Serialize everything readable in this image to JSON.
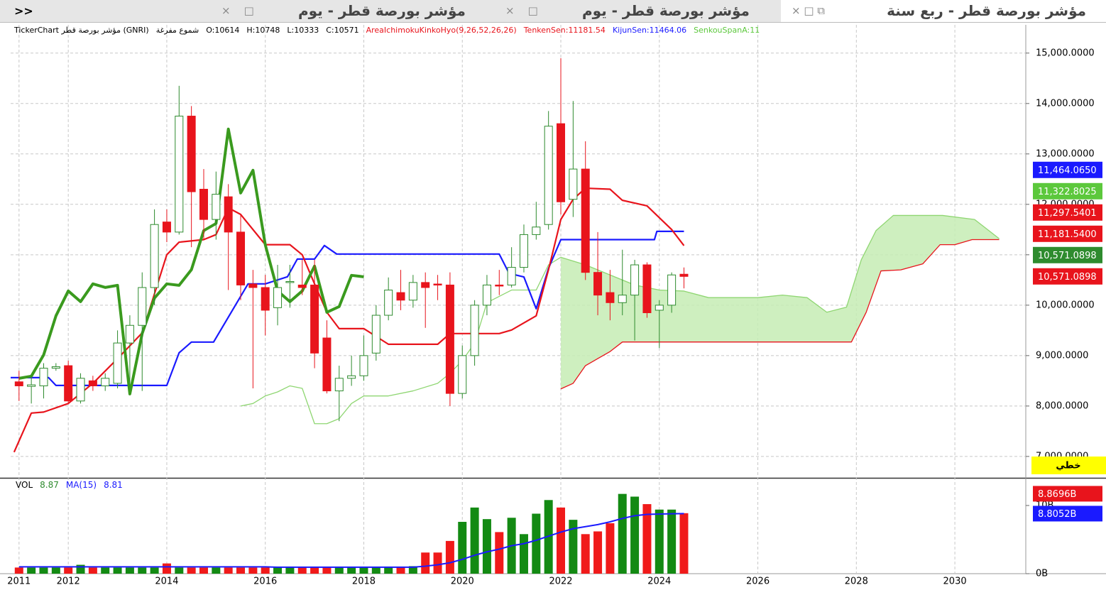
{
  "tabs": [
    "مؤشر بورصة قطر - ربع سنة",
    "مؤشر بورصة قطر - يوم",
    "مؤشر بورصة قطر - يوم"
  ],
  "collapse": "<<",
  "chart_data": [
    {
      "type": "candlestick",
      "legend": [
        {
          "text": "TickerChart مؤشر بورصة قطر (GNRI)",
          "color": "#000"
        },
        {
          "text": "شموع مفرغة",
          "color": "#000"
        },
        {
          "text": "O:10614",
          "color": "#000"
        },
        {
          "text": "H:10748",
          "color": "#000"
        },
        {
          "text": "L:10333",
          "color": "#000"
        },
        {
          "text": "C:10571",
          "color": "#000"
        },
        {
          "text": "AreaIchimokuKinkoHyo(9,26,52,26,26)",
          "color": "#e8141c"
        },
        {
          "text": "TenkenSen:11181.54",
          "color": "#e8141c"
        },
        {
          "text": "KijunSen:11464.06",
          "color": "#1a1aff"
        },
        {
          "text": "SenkouSpanA:11",
          "color": "#5cc83c"
        }
      ],
      "scale_button": "خطي",
      "xlim": [
        2010.83,
        2031.44
      ],
      "xticks": [
        2011,
        2012,
        2014,
        2016,
        2018,
        2020,
        2022,
        2024,
        2026,
        2028,
        2030
      ],
      "ylim": [
        6590,
        15560
      ],
      "yticks": [
        {
          "value": 7000,
          "label": "7,000.0000"
        },
        {
          "value": 8000,
          "label": "8,000.0000"
        },
        {
          "value": 9000,
          "label": "9,000.0000"
        },
        {
          "value": 10000,
          "label": "10,000.0000"
        },
        {
          "value": 11000,
          "label": "11,000.0000"
        },
        {
          "value": 12000,
          "label": "12,000.0000"
        },
        {
          "value": 13000,
          "label": "13,000.0000"
        },
        {
          "value": 14000,
          "label": "14,000.0000"
        },
        {
          "value": 15000,
          "label": "15,000.0000"
        }
      ],
      "grid": true,
      "up_color": "#2e8b2e",
      "down_color": "#e8141c",
      "cloud_color": "#c6ecb4",
      "x": [
        2011,
        2011.25,
        2011.5,
        2011.75,
        2012,
        2012.25,
        2012.5,
        2012.75,
        2013,
        2013.25,
        2013.5,
        2013.75,
        2014,
        2014.25,
        2014.5,
        2014.75,
        2015,
        2015.25,
        2015.5,
        2015.75,
        2016,
        2016.25,
        2016.5,
        2016.75,
        2017,
        2017.25,
        2017.5,
        2017.75,
        2018,
        2018.25,
        2018.5,
        2018.75,
        2019,
        2019.25,
        2019.5,
        2019.75,
        2020,
        2020.25,
        2020.5,
        2020.75,
        2021,
        2021.25,
        2021.5,
        2021.75,
        2022,
        2022.25,
        2022.5,
        2022.75,
        2023,
        2023.25,
        2023.5,
        2023.75,
        2024,
        2024.25,
        2024.5
      ],
      "open": [
        8480,
        8390,
        8400,
        8750,
        8800,
        8100,
        8500,
        8400,
        8450,
        9250,
        9600,
        10350,
        11650,
        11450,
        13750,
        12300,
        11700,
        12150,
        11450,
        10420,
        10350,
        9950,
        10450,
        10400,
        10400,
        9350,
        8300,
        8550,
        8600,
        9050,
        9800,
        10250,
        10100,
        10450,
        10420,
        10400,
        8250,
        9000,
        10000,
        10400,
        10400,
        10750,
        11400,
        11600,
        13600,
        12100,
        12700,
        10650,
        10250,
        10050,
        10200,
        10800,
        9900,
        10000,
        10614
      ],
      "high": [
        8700,
        8600,
        8850,
        8850,
        8900,
        8650,
        8600,
        8650,
        9500,
        9800,
        10650,
        11900,
        11900,
        14350,
        13950,
        12700,
        12650,
        12400,
        11800,
        10700,
        10600,
        10800,
        10800,
        10900,
        10900,
        9700,
        8800,
        9000,
        9400,
        10000,
        10550,
        10700,
        10600,
        10650,
        10600,
        10650,
        9200,
        10100,
        10600,
        10700,
        11150,
        11600,
        12050,
        13850,
        14900,
        14050,
        13250,
        11450,
        10700,
        11100,
        10900,
        10850,
        10100,
        10650,
        10748
      ],
      "low": [
        8100,
        8050,
        8150,
        8700,
        8050,
        8050,
        8300,
        8300,
        8350,
        8400,
        8300,
        10000,
        11250,
        11400,
        11150,
        11300,
        11300,
        10300,
        10100,
        8350,
        9400,
        9600,
        9950,
        10200,
        8750,
        8250,
        7700,
        8400,
        8500,
        8900,
        9700,
        9900,
        9950,
        9550,
        10100,
        8000,
        8150,
        8800,
        9800,
        10200,
        10350,
        10650,
        11300,
        11500,
        11800,
        11750,
        10500,
        9800,
        9700,
        9800,
        9300,
        9750,
        9150,
        9850,
        10333
      ],
      "close": [
        8400,
        8420,
        8750,
        8780,
        8100,
        8550,
        8400,
        8550,
        9250,
        9600,
        10350,
        11600,
        11450,
        13750,
        12250,
        11700,
        12200,
        11450,
        10400,
        10350,
        9900,
        10350,
        10470,
        10350,
        9050,
        8300,
        8550,
        8600,
        9000,
        9800,
        10300,
        10100,
        10450,
        10350,
        10400,
        8250,
        9000,
        10000,
        10400,
        10380,
        10750,
        11400,
        11550,
        13550,
        12050,
        12700,
        10650,
        10200,
        10050,
        10200,
        10800,
        9850,
        10000,
        10600,
        10571
      ],
      "lines": [
        {
          "color": "#8fd672",
          "width": 1.3,
          "x": [
            2015.5,
            2015.75,
            2016,
            2016.25,
            2016.5,
            2016.75,
            2017,
            2017.25,
            2017.5,
            2017.75,
            2018,
            2018.5,
            2019,
            2019.5,
            2019.75,
            2020,
            2020.25,
            2020.5,
            2021,
            2021.5,
            2021.75,
            2022,
            2022.5,
            2023,
            2023.5,
            2024,
            2024.5,
            2025,
            2026,
            2026.5,
            2027,
            2027.4,
            2027.8,
            2028.1,
            2028.4,
            2028.75,
            2029.75,
            2030.4,
            2030.9
          ],
          "values": [
            8000,
            8050,
            8200,
            8280,
            8400,
            8350,
            7650,
            7650,
            7750,
            8050,
            8200,
            8200,
            8300,
            8450,
            8650,
            8900,
            9250,
            10050,
            10300,
            10300,
            10800,
            10950,
            10800,
            10600,
            10400,
            10300,
            10280,
            10150,
            10150,
            10200,
            10150,
            9860,
            9960,
            10900,
            11480,
            11780,
            11780,
            11700,
            11320
          ]
        },
        {
          "color": "#e8141c",
          "width": 1.3,
          "x": [
            2022,
            2022.25,
            2022.5,
            2022.75,
            2023,
            2023.25,
            2027.9,
            2028.2,
            2028.5,
            2028.9,
            2029.35,
            2029.7,
            2030,
            2030.35,
            2030.9
          ],
          "values": [
            8340,
            8450,
            8800,
            8940,
            9080,
            9270,
            9270,
            9860,
            10680,
            10700,
            10820,
            11200,
            11200,
            11300,
            11300
          ]
        },
        {
          "color": "#1a1aff",
          "width": 2.2,
          "x": [
            2010.83,
            2011.6,
            2011.75,
            2014,
            2014.25,
            2014.5,
            2014.95,
            2015.65,
            2016,
            2016.45,
            2016.65,
            2017,
            2017.2,
            2017.45,
            2020.75,
            2020.95,
            2021.25,
            2021.5,
            2021.75,
            2022,
            2023.9,
            2023.95,
            2024.5
          ],
          "values": [
            8563,
            8563,
            8408,
            8408,
            9056,
            9268,
            9268,
            10423,
            10423,
            10563,
            10915,
            10915,
            11183,
            11014,
            11014,
            10630,
            10560,
            9930,
            10730,
            11300,
            11300,
            11464.06,
            11464.06
          ]
        },
        {
          "color": "#e8141c",
          "width": 2.2,
          "x": [
            2010.9,
            2011.25,
            2011.5,
            2012,
            2012.5,
            2013,
            2013.5,
            2014,
            2014.25,
            2014.75,
            2015,
            2015.25,
            2015.5,
            2016,
            2016.5,
            2016.75,
            2017,
            2017.25,
            2017.5,
            2018,
            2018.5,
            2019.5,
            2019.75,
            2020.75,
            2021,
            2021.5,
            2021.75,
            2022,
            2022.25,
            2022.5,
            2023,
            2023.25,
            2023.75,
            2024.25,
            2024.5
          ],
          "values": [
            7085,
            7860,
            7880,
            8050,
            8450,
            8940,
            9450,
            11000,
            11250,
            11300,
            11400,
            11930,
            11800,
            11200,
            11200,
            11000,
            10423,
            9859,
            9535,
            9535,
            9225,
            9225,
            9437,
            9437,
            9507,
            9789,
            10704,
            11700,
            12100,
            12320,
            12300,
            12080,
            11970,
            11500,
            11181.54
          ]
        },
        {
          "color": "#3a9a1e",
          "width": 4,
          "x": [
            2011,
            2011.25,
            2011.5,
            2011.75,
            2012,
            2012.25,
            2012.5,
            2012.75,
            2013,
            2013.25,
            2013.5,
            2013.75,
            2014,
            2014.25,
            2014.5,
            2014.75,
            2015,
            2015.25,
            2015.5,
            2015.75,
            2016,
            2016.25,
            2016.5,
            2016.75,
            2017,
            2017.25,
            2017.5,
            2017.75,
            2018
          ],
          "values": [
            8549,
            8592,
            9014,
            9789,
            10282,
            10070,
            10423,
            10352,
            10394,
            8239,
            9437,
            10141,
            10423,
            10394,
            10704,
            11479,
            11620,
            13493,
            12225,
            12676,
            11197,
            10282,
            10070,
            10282,
            10775,
            9859,
            9972,
            10592,
            10563
          ]
        }
      ],
      "last_labels": [
        {
          "value": 11464.065,
          "label": "11,464.0650",
          "color": "#1a1aff"
        },
        {
          "value": 11322.8025,
          "label": "11,322.8025",
          "color": "#5cc83c"
        },
        {
          "value": 11297.5401,
          "label": "11,297.5401",
          "color": "#e8141c"
        },
        {
          "value": 11181.54,
          "label": "11,181.5400",
          "color": "#e8141c"
        },
        {
          "value": 10571.0898,
          "label": "10,571.0898",
          "color": "#2e8b2e"
        },
        {
          "value": 10571.0898,
          "label": "10,571.0898",
          "color": "#e8141c"
        }
      ]
    },
    {
      "type": "bar",
      "legend": [
        {
          "text": "VOL",
          "color": "#000"
        },
        {
          "text": "8.87",
          "color": "#2e8b2e"
        },
        {
          "text": "MA(15)",
          "color": "#1a1aff"
        },
        {
          "text": "8.81",
          "color": "#1a1aff"
        }
      ],
      "ylim": [
        0,
        13.85
      ],
      "yticks": [
        {
          "value": 0,
          "label": "0B"
        },
        {
          "value": 10,
          "label": "10B"
        }
      ],
      "values": [
        0.9,
        0.9,
        0.9,
        0.9,
        0.9,
        1.3,
        0.9,
        0.9,
        0.9,
        0.9,
        0.9,
        0.9,
        1.5,
        0.9,
        0.9,
        0.9,
        0.9,
        0.9,
        0.9,
        0.9,
        0.9,
        0.9,
        0.9,
        0.9,
        0.9,
        0.9,
        0.9,
        0.9,
        0.9,
        0.9,
        0.9,
        0.9,
        1.1,
        3.1,
        3.1,
        4.8,
        7.6,
        9.7,
        8.0,
        6.1,
        8.2,
        5.8,
        8.8,
        10.8,
        9.7,
        7.9,
        5.8,
        6.2,
        7.4,
        11.7,
        11.3,
        10.2,
        9.4,
        9.4,
        8.87
      ],
      "ma": {
        "color": "#1a1aff",
        "values": [
          1,
          1,
          1,
          1,
          1,
          1,
          1,
          1,
          1,
          1,
          1,
          1,
          1,
          1,
          1,
          1,
          1,
          1,
          1,
          1,
          1,
          0.95,
          0.95,
          0.95,
          0.95,
          0.95,
          0.95,
          0.95,
          0.95,
          0.95,
          0.95,
          0.95,
          0.95,
          1.1,
          1.3,
          1.6,
          2.1,
          2.7,
          3.2,
          3.6,
          4.1,
          4.4,
          4.9,
          5.5,
          6.1,
          6.6,
          6.9,
          7.2,
          7.6,
          8.1,
          8.5,
          8.7,
          8.75,
          8.78,
          8.81
        ]
      },
      "last_labels": [
        {
          "value": 8.8696,
          "label": "8.8696B",
          "color": "#e8141c"
        },
        {
          "value": 8.8052,
          "label": "8.8052B",
          "color": "#1a1aff"
        }
      ]
    }
  ]
}
